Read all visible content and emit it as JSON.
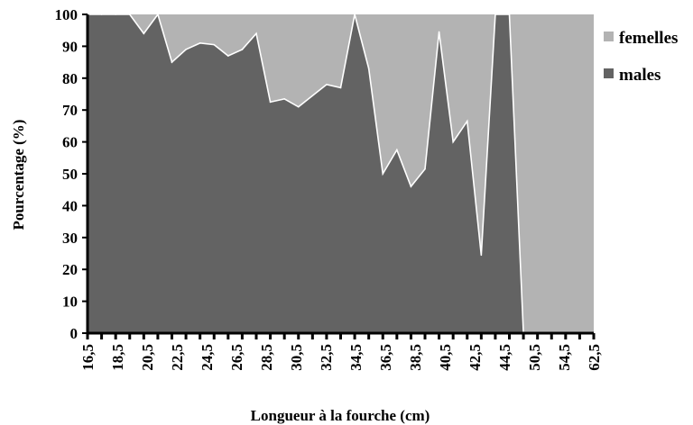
{
  "chart_data": {
    "type": "area",
    "stacked": "percent",
    "xlabel": "Longueur à la fourche (cm)",
    "ylabel": "Pourcentage (%)",
    "ylim": [
      0,
      100
    ],
    "yticks": [
      0,
      10,
      20,
      30,
      40,
      50,
      60,
      70,
      80,
      90,
      100
    ],
    "grid": false,
    "legend_position": "right",
    "x_tick_labels": [
      "16,5",
      "18,5",
      "20,5",
      "22,5",
      "24,5",
      "26,5",
      "28,5",
      "30,5",
      "32,5",
      "34,5",
      "36,5",
      "38,5",
      "40,5",
      "42,5",
      "44,5",
      "50,5",
      "54,5",
      "62,5"
    ],
    "categories": [
      "16,5",
      "17,5",
      "18,5",
      "19,5",
      "20,5",
      "21,5",
      "22,5",
      "23,5",
      "24,5",
      "25,5",
      "26,5",
      "27,5",
      "28,5",
      "29,5",
      "30,5",
      "31,5",
      "32,5",
      "33,5",
      "34,5",
      "35,5",
      "36,5",
      "37,5",
      "38,5",
      "39,5",
      "40,5",
      "41,5",
      "42,5",
      "43,5",
      "44,5",
      "46,5",
      "50,5",
      "52,5",
      "54,5",
      "56,5",
      "58,5",
      "60,5",
      "62,5"
    ],
    "series": [
      {
        "name": "males",
        "color": "#636363",
        "values": [
          100,
          100,
          100,
          100,
          94,
          100,
          85,
          89,
          91,
          90.5,
          87,
          89,
          94,
          72.5,
          73.5,
          71,
          74.5,
          78,
          77,
          100,
          83,
          50,
          57.5,
          46,
          51.5,
          94.5,
          60,
          66.5,
          24.5,
          100,
          100,
          0,
          0,
          0,
          0,
          0,
          0
        ]
      },
      {
        "name": "femelles",
        "color": "#b3b3b3",
        "values": [
          0,
          0,
          0,
          0,
          6,
          0,
          15,
          11,
          9,
          9.5,
          13,
          11,
          6,
          27.5,
          26.5,
          29,
          25.5,
          22,
          23,
          0,
          17,
          50,
          42.5,
          54,
          48.5,
          5.5,
          40,
          33.5,
          75.5,
          0,
          0,
          100,
          100,
          100,
          100,
          100,
          100
        ]
      }
    ]
  }
}
